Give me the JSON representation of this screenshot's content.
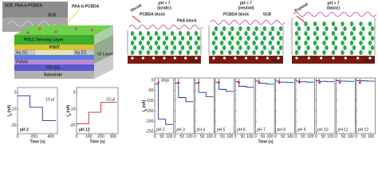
{
  "schematic": {
    "title": "5CB_PAA-b-PCBDA",
    "polymer": "PAA-b-PCBDA",
    "lc": "5CB",
    "layer": "POLC Sensing Layer",
    "semiconductor": "P3HT",
    "source": "Ag (S)",
    "drain": "Ag (D)",
    "gi": "GI Layer",
    "dielectric": "PMMA",
    "gate": "ITO (G)",
    "substrate": "Substrate"
  },
  "mechanism": {
    "panels": [
      {
        "title": "pH < 7",
        "subtitle": "(acidic)",
        "arrow": "Shrink"
      },
      {
        "title": "pH = 7",
        "subtitle": "(neutral)"
      },
      {
        "title": "pH > 7",
        "subtitle": "(basic)",
        "arrow": "Expand"
      }
    ],
    "labels": {
      "pcbda": "PCBDA block",
      "paa": "PAA block",
      "lc": "5CB",
      "p3ht": "P3HT"
    }
  },
  "chart_data": [
    {
      "type": "line",
      "title": "pH 2",
      "annotation": "10 μl",
      "xlabel": "Time (s)",
      "ylabel": {
        "symbol": "I",
        "subscript": "D",
        "unit": "(nA)"
      },
      "xlim": [
        0,
        480
      ],
      "xticks": [
        0,
        200,
        400
      ],
      "ylim": [
        -25,
        3
      ],
      "yticks": [
        0,
        -10,
        -20
      ],
      "color": "#1f2f9a",
      "x": [
        0,
        150,
        150,
        300,
        300,
        460
      ],
      "values": [
        -2,
        -2,
        -9,
        -9,
        -17,
        -17
      ]
    },
    {
      "type": "line",
      "title": "pH 12",
      "annotation": "10 μl",
      "xlabel": "Time (s)",
      "ylabel": {
        "symbol": "I",
        "subscript": "D",
        "unit": "(nA)"
      },
      "xlim": [
        0,
        340
      ],
      "xticks": [
        0,
        100,
        200,
        300
      ],
      "ylim": [
        -25,
        3
      ],
      "yticks": [
        -20,
        -10,
        0
      ],
      "color": "#d62020",
      "x": [
        0,
        100,
        100,
        200,
        200,
        330
      ],
      "values": [
        -19,
        -19,
        -12,
        -12,
        -6,
        -6
      ]
    },
    {
      "type": "line",
      "annotation": "drop",
      "xlabel": "Time (s)",
      "ylabel": {
        "symbol": "I",
        "subscript": "D",
        "unit": "(nA)"
      },
      "xlim": [
        0,
        130
      ],
      "xticks": [
        0,
        50,
        100
      ],
      "ylim": [
        -260,
        10
      ],
      "yticks": [
        0,
        -50,
        -100,
        -150,
        -200,
        -250
      ],
      "color": "#1f2f9a",
      "panels": [
        {
          "title": "pH 2",
          "x": [
            0,
            25,
            25,
            75,
            75,
            125
          ],
          "values": [
            -20,
            -20,
            -190,
            -190,
            -215,
            -215
          ]
        },
        {
          "title": "pH 3",
          "x": [
            0,
            25,
            25,
            75,
            75,
            125
          ],
          "values": [
            -15,
            -15,
            -85,
            -85,
            -105,
            -105
          ]
        },
        {
          "title": "pH 4",
          "x": [
            0,
            25,
            25,
            75,
            75,
            125
          ],
          "values": [
            -15,
            -15,
            -60,
            -60,
            -80,
            -80
          ]
        },
        {
          "title": "pH 5",
          "x": [
            0,
            25,
            25,
            75,
            75,
            125
          ],
          "values": [
            -10,
            -10,
            -45,
            -45,
            -55,
            -55
          ]
        },
        {
          "title": "pH 6",
          "x": [
            0,
            25,
            25,
            75,
            75,
            125
          ],
          "values": [
            -8,
            -8,
            -30,
            -30,
            -35,
            -35
          ]
        },
        {
          "title": "pH 7",
          "x": [
            0,
            25,
            25,
            75,
            75,
            125
          ],
          "values": [
            -5,
            -5,
            -15,
            -15,
            -20,
            -20
          ]
        },
        {
          "title": "pH 8",
          "x": [
            0,
            25,
            25,
            75,
            75,
            125
          ],
          "values": [
            -5,
            -5,
            -10,
            -10,
            -12,
            -12
          ]
        },
        {
          "title": "pH 9",
          "x": [
            0,
            25,
            25,
            75,
            75,
            125
          ],
          "values": [
            -5,
            -5,
            -8,
            -8,
            -10,
            -10
          ]
        },
        {
          "title": "pH 10",
          "x": [
            0,
            25,
            25,
            75,
            75,
            125
          ],
          "values": [
            -4,
            -4,
            -6,
            -6,
            -8,
            -8
          ]
        },
        {
          "title": "pH 11",
          "x": [
            0,
            25,
            25,
            75,
            75,
            125
          ],
          "values": [
            -3,
            -3,
            -5,
            -5,
            -6,
            -6
          ]
        },
        {
          "title": "pH 12",
          "x": [
            0,
            25,
            25,
            75,
            75,
            125
          ],
          "values": [
            -3,
            -3,
            -4,
            -4,
            -5,
            -5
          ]
        }
      ]
    }
  ]
}
